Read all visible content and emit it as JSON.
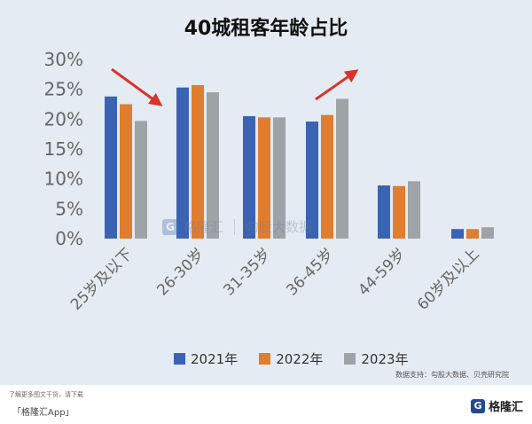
{
  "chart_data": {
    "type": "bar",
    "title": "40城租客年龄占比",
    "categories": [
      "25岁及以下",
      "26-30岁",
      "31-35岁",
      "36-45岁",
      "44-59岁",
      "60岁及以上"
    ],
    "series": [
      {
        "name": "2021年",
        "color": "#3a63b4",
        "values": [
          23.8,
          25.3,
          20.5,
          19.6,
          8.9,
          1.6
        ]
      },
      {
        "name": "2022年",
        "color": "#e07d2e",
        "values": [
          22.5,
          25.7,
          20.3,
          20.7,
          8.8,
          1.6
        ]
      },
      {
        "name": "2023年",
        "color": "#9ea3a8",
        "values": [
          19.7,
          24.5,
          20.3,
          23.4,
          9.6,
          1.9
        ]
      }
    ],
    "yticks": [
      "0%",
      "5%",
      "10%",
      "15%",
      "20%",
      "25%",
      "30%"
    ],
    "ylim": [
      0,
      30
    ],
    "grid": false,
    "legend_position": "bottom",
    "annotations": [
      "down-arrow-over-25-and-under",
      "up-arrow-over-36-45"
    ]
  },
  "source": "数据支持：勾股大数据、贝壳研究院",
  "footer": {
    "note": "了解更多图文干货，请下载",
    "app": "「格隆汇App」",
    "brand": "格隆汇",
    "brand_logo": "G"
  },
  "watermark": {
    "logo": "G",
    "brand": "格隆汇",
    "partner": "勾股大数据"
  },
  "arrow_color": "#d9342b"
}
